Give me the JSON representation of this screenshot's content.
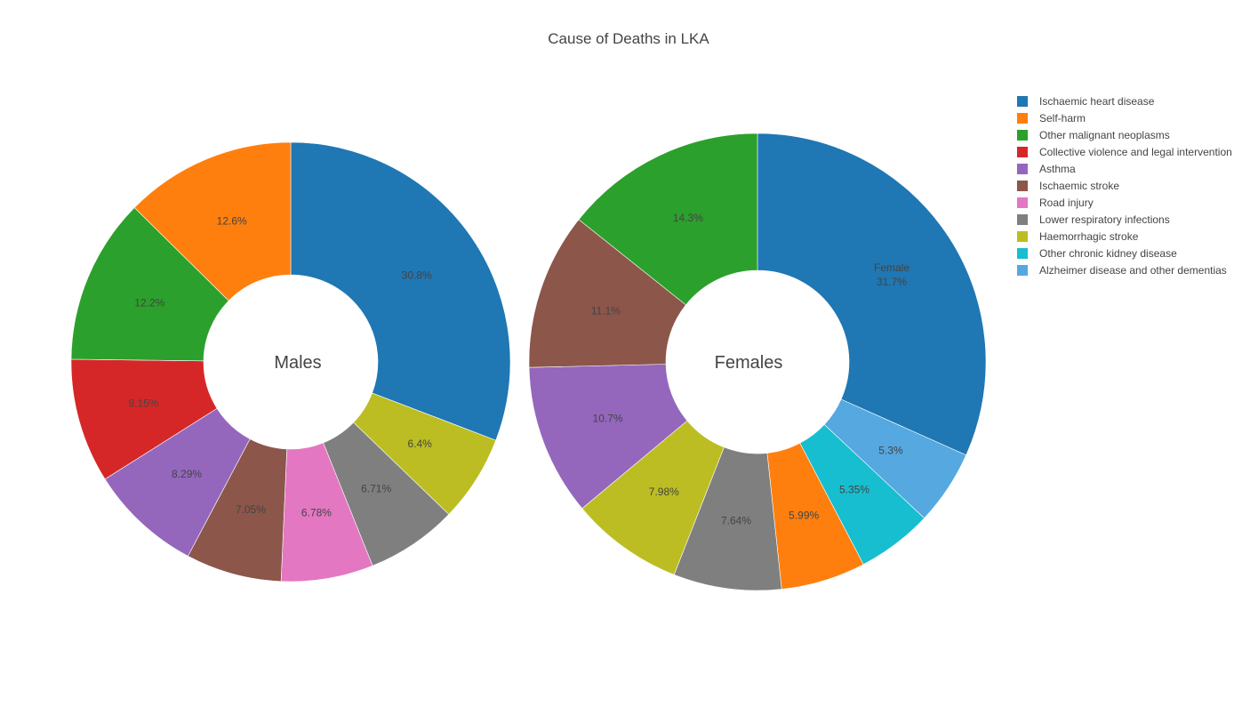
{
  "chart_data": {
    "type": "pie",
    "title": "Cause of Deaths in LKA",
    "legend_position": "right",
    "legend": [
      {
        "name": "Ischaemic heart disease",
        "color": "#1f77b4"
      },
      {
        "name": "Self-harm",
        "color": "#ff7f0e"
      },
      {
        "name": "Other malignant neoplasms",
        "color": "#2ca02c"
      },
      {
        "name": "Collective violence and legal intervention",
        "color": "#d62728"
      },
      {
        "name": "Asthma",
        "color": "#9467bd"
      },
      {
        "name": "Ischaemic stroke",
        "color": "#8c564b"
      },
      {
        "name": "Road injury",
        "color": "#e377c2"
      },
      {
        "name": "Lower respiratory infections",
        "color": "#7f7f7f"
      },
      {
        "name": "Haemorrhagic stroke",
        "color": "#bcbd22"
      },
      {
        "name": "Other chronic kidney disease",
        "color": "#17becf"
      },
      {
        "name": "Alzheimer disease and other dementias",
        "color": "#55a8e0"
      }
    ],
    "pies": [
      {
        "center_label": "Males",
        "slices": [
          {
            "category": "Ischaemic heart disease",
            "value": 30.8,
            "label": "30.8%"
          },
          {
            "category": "Haemorrhagic stroke",
            "value": 6.4,
            "label": "6.4%"
          },
          {
            "category": "Lower respiratory infections",
            "value": 6.71,
            "label": "6.71%"
          },
          {
            "category": "Road injury",
            "value": 6.78,
            "label": "6.78%"
          },
          {
            "category": "Ischaemic stroke",
            "value": 7.05,
            "label": "7.05%"
          },
          {
            "category": "Asthma",
            "value": 8.29,
            "label": "8.29%"
          },
          {
            "category": "Collective violence and legal intervention",
            "value": 9.15,
            "label": "9.15%"
          },
          {
            "category": "Other malignant neoplasms",
            "value": 12.2,
            "label": "12.2%"
          },
          {
            "category": "Self-harm",
            "value": 12.6,
            "label": "12.6%"
          }
        ]
      },
      {
        "center_label": "Females",
        "slices": [
          {
            "category": "Ischaemic heart disease",
            "value": 31.7,
            "label": "31.7%",
            "name_label": "Female"
          },
          {
            "category": "Alzheimer disease and other dementias",
            "value": 5.3,
            "label": "5.3%"
          },
          {
            "category": "Other chronic kidney disease",
            "value": 5.35,
            "label": "5.35%"
          },
          {
            "category": "Self-harm",
            "value": 5.99,
            "label": "5.99%"
          },
          {
            "category": "Lower respiratory infections",
            "value": 7.64,
            "label": "7.64%"
          },
          {
            "category": "Haemorrhagic stroke",
            "value": 7.98,
            "label": "7.98%"
          },
          {
            "category": "Asthma",
            "value": 10.7,
            "label": "10.7%"
          },
          {
            "category": "Ischaemic stroke",
            "value": 11.1,
            "label": "11.1%"
          },
          {
            "category": "Other malignant neoplasms",
            "value": 14.3,
            "label": "14.3%"
          }
        ]
      }
    ]
  }
}
